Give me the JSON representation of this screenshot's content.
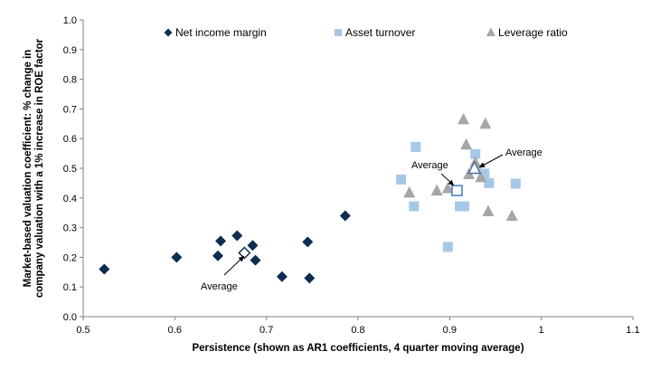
{
  "chart_data": {
    "type": "scatter",
    "title": "",
    "xlabel": "Persistence (shown as AR1 coefficients, 4 quarter moving average)",
    "ylabel": "Market-based valuation coefficient: % change in company valuation with a 1% increase in ROE factor",
    "ylabel_lines": [
      "Market-based valuation coefficient: % change in",
      "company valuation with a 1% increase in ROE factor"
    ],
    "xlim": [
      0.5,
      1.1
    ],
    "ylim": [
      0.0,
      1.0
    ],
    "x_ticks": [
      "0.5",
      "0.6",
      "0.7",
      "0.8",
      "0.9",
      "1",
      "1.1"
    ],
    "y_ticks": [
      "0.0",
      "0.1",
      "0.2",
      "0.3",
      "0.4",
      "0.5",
      "0.6",
      "0.7",
      "0.8",
      "0.9",
      "1.0"
    ],
    "grid": false,
    "legend_position": "top",
    "series": [
      {
        "name": "Net income margin",
        "marker": "diamond",
        "color": "#0d2d52",
        "points": [
          [
            0.523,
            0.16
          ],
          [
            0.602,
            0.2
          ],
          [
            0.647,
            0.205
          ],
          [
            0.65,
            0.255
          ],
          [
            0.668,
            0.273
          ],
          [
            0.685,
            0.24
          ],
          [
            0.688,
            0.19
          ],
          [
            0.717,
            0.135
          ],
          [
            0.745,
            0.252
          ],
          [
            0.747,
            0.13
          ],
          [
            0.786,
            0.34
          ]
        ]
      },
      {
        "name": "Asset turnover",
        "marker": "square",
        "color": "#a6c8e8",
        "points": [
          [
            0.847,
            0.462
          ],
          [
            0.861,
            0.372
          ],
          [
            0.863,
            0.572
          ],
          [
            0.898,
            0.235
          ],
          [
            0.911,
            0.372
          ],
          [
            0.916,
            0.372
          ],
          [
            0.928,
            0.548
          ],
          [
            0.93,
            0.498
          ],
          [
            0.938,
            0.482
          ],
          [
            0.943,
            0.45
          ],
          [
            0.972,
            0.448
          ]
        ]
      },
      {
        "name": "Leverage ratio",
        "marker": "triangle",
        "color": "#a6a6a6",
        "points": [
          [
            0.856,
            0.418
          ],
          [
            0.886,
            0.425
          ],
          [
            0.898,
            0.433
          ],
          [
            0.915,
            0.665
          ],
          [
            0.918,
            0.58
          ],
          [
            0.921,
            0.48
          ],
          [
            0.928,
            0.52
          ],
          [
            0.934,
            0.47
          ],
          [
            0.939,
            0.65
          ],
          [
            0.942,
            0.355
          ],
          [
            0.968,
            0.34
          ]
        ]
      }
    ],
    "averages": [
      {
        "series": "Net income margin",
        "x": 0.676,
        "y": 0.215,
        "marker": "diamond",
        "label": "Average"
      },
      {
        "series": "Asset turnover",
        "x": 0.908,
        "y": 0.425,
        "marker": "square",
        "label": "Average"
      },
      {
        "series": "Leverage ratio",
        "x": 0.927,
        "y": 0.5,
        "marker": "triangle",
        "label": "Average"
      }
    ]
  }
}
